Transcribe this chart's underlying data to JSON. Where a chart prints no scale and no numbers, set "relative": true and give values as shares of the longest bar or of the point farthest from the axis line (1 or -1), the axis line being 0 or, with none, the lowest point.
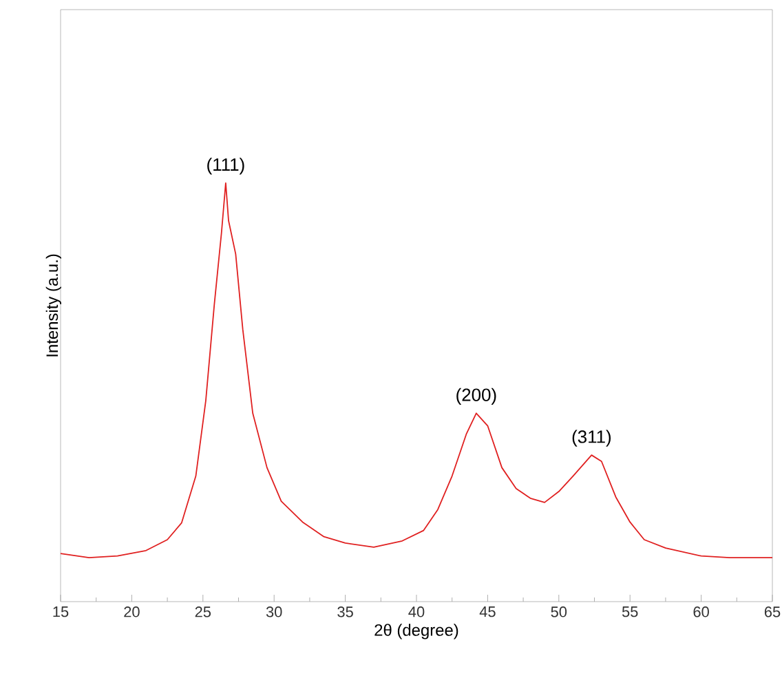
{
  "chart_data": {
    "type": "line",
    "relative": true,
    "xlabel": "2θ (degree)",
    "ylabel": "Intensity (a.u.)",
    "xlim": [
      15,
      65
    ],
    "xticks": [
      15,
      20,
      25,
      30,
      35,
      40,
      45,
      50,
      55,
      60,
      65
    ],
    "x": [
      15,
      17,
      19,
      21,
      22.5,
      23.5,
      24.5,
      25.2,
      25.8,
      26.3,
      26.6,
      26.8,
      27.3,
      27.8,
      28.5,
      29.5,
      30.5,
      32,
      33.5,
      35,
      37,
      39,
      40.5,
      41.5,
      42.5,
      43.5,
      44.2,
      45,
      46,
      47,
      48,
      49,
      50,
      51,
      52.3,
      53,
      54,
      55,
      56,
      57.5,
      60,
      62,
      65
    ],
    "series": [
      {
        "color": "#e02020",
        "values": [
          0.115,
          0.105,
          0.109,
          0.122,
          0.148,
          0.188,
          0.3,
          0.48,
          0.71,
          0.88,
          1.0,
          0.91,
          0.83,
          0.65,
          0.45,
          0.32,
          0.24,
          0.19,
          0.155,
          0.14,
          0.13,
          0.145,
          0.17,
          0.22,
          0.3,
          0.4,
          0.45,
          0.42,
          0.32,
          0.27,
          0.247,
          0.237,
          0.263,
          0.3,
          0.35,
          0.335,
          0.25,
          0.19,
          0.148,
          0.128,
          0.109,
          0.105,
          0.105
        ]
      }
    ],
    "annotations": [
      {
        "text": "(111)",
        "x": 26.6,
        "y": 1.0
      },
      {
        "text": "(200)",
        "x": 44.2,
        "y": 0.45
      },
      {
        "text": "(311)",
        "x": 52.3,
        "y": 0.35
      }
    ]
  }
}
